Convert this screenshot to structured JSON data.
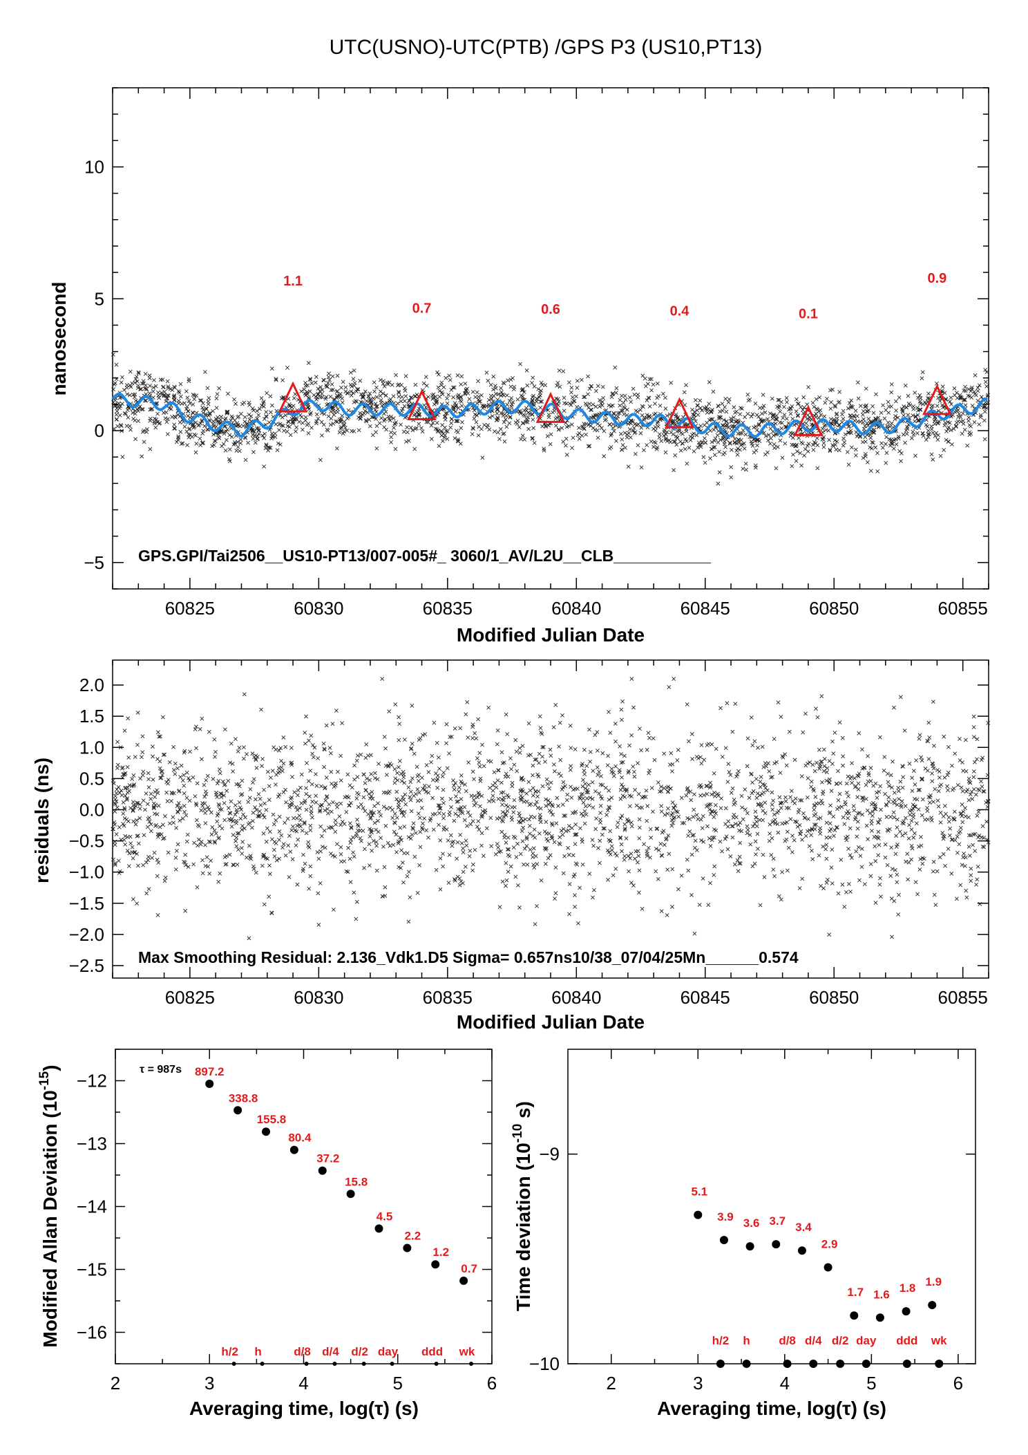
{
  "title": "UTC(USNO)-UTC(PTB)  /GPS  P3  (US10,PT13)",
  "panel_top": {
    "ylabel": "nanosecond",
    "xlabel": "Modified Julian Date",
    "annotation": "GPS.GPI/Tai2506__US10-PT13/007-005#_  3060/1_AV/L2U__CLB___________"
  },
  "panel_mid": {
    "ylabel": "residuals (ns)",
    "xlabel": "Modified Julian Date",
    "annotation": "Max Smoothing Residual: 2.136_Vdk1.D5  Sigma= 0.657ns10/38_07/04/25Mn______0.574"
  },
  "panel_adev": {
    "ylabel": "Modified Allan Deviation (10",
    "ylabel_exp": "-15",
    "ylabel_end": ")",
    "xlabel": "Averaging time, log(τ) (s)",
    "tau_note": "τ = 987s"
  },
  "panel_tdev": {
    "ylabel": "Time deviation (10",
    "ylabel_exp": "-10",
    "ylabel_end": " s)",
    "xlabel": "Averaging time, log(τ) (s)"
  },
  "chart_data": [
    {
      "type": "scatter",
      "name": "offset",
      "xlim": [
        60822,
        60856
      ],
      "ylim": [
        -6,
        13
      ],
      "xticks": [
        60825,
        60830,
        60835,
        60840,
        60845,
        60850,
        60855
      ],
      "yticks": [
        -5,
        0,
        5,
        10
      ],
      "scatter_approx": "dense cloud of ~2500 points spread ±1 ns around the smooth curve",
      "smooth_curve": {
        "x": [
          60822,
          60823,
          60824,
          60825,
          60826,
          60827,
          60828,
          60829,
          60830,
          60831,
          60832,
          60833,
          60834,
          60835,
          60836,
          60837,
          60838,
          60839,
          60840,
          60841,
          60842,
          60843,
          60844,
          60845,
          60846,
          60847,
          60848,
          60849,
          60850,
          60851,
          60852,
          60853,
          60854,
          60855,
          60856
        ],
        "y": [
          1.2,
          1.1,
          1.0,
          0.5,
          0.2,
          0.0,
          0.3,
          0.8,
          1.0,
          0.8,
          0.8,
          0.8,
          0.8,
          0.7,
          0.8,
          0.9,
          0.9,
          0.8,
          0.6,
          0.5,
          0.4,
          0.4,
          0.3,
          0.1,
          0.0,
          0.0,
          0.1,
          0.2,
          0.2,
          0.1,
          0.1,
          0.3,
          0.6,
          0.8,
          1.0
        ],
        "color": "#1e88e5"
      },
      "markers": [
        {
          "x": 60829,
          "y": 1.1,
          "label": "1.1"
        },
        {
          "x": 60834,
          "y": 0.8,
          "label": "0.7"
        },
        {
          "x": 60839,
          "y": 0.7,
          "label": "0.6"
        },
        {
          "x": 60844,
          "y": 0.5,
          "label": "0.4"
        },
        {
          "x": 60849,
          "y": 0.2,
          "label": "0.1"
        },
        {
          "x": 60854,
          "y": 1.0,
          "label": "0.9"
        }
      ],
      "marker_color": "#e31a1c"
    },
    {
      "type": "scatter",
      "name": "residuals",
      "xlim": [
        60822,
        60856
      ],
      "ylim": [
        -2.7,
        2.4
      ],
      "xticks": [
        60825,
        60830,
        60835,
        60840,
        60845,
        60850,
        60855
      ],
      "yticks": [
        -2.5,
        -2.0,
        -1.5,
        -1.0,
        -0.5,
        0.0,
        0.5,
        1.0,
        1.5,
        2.0
      ],
      "yticklabels": [
        "−2.5",
        "−2.0",
        "−1.5",
        "−1.0",
        "−0.5",
        "0.0",
        "0.5",
        "1.0",
        "1.5",
        "2.0"
      ],
      "scatter_approx": "~2500 residual points roughly normally distributed, sigma ≈ 0.66 ns"
    },
    {
      "type": "scatter",
      "name": "modified-allan-deviation",
      "xlim": [
        2,
        6
      ],
      "ylim": [
        -16.5,
        -11.5
      ],
      "xticks": [
        2,
        3,
        4,
        5,
        6
      ],
      "yticks": [
        -16,
        -15,
        -14,
        -13,
        -12
      ],
      "points": [
        {
          "x": 3.0,
          "y": -12.05,
          "label": "897.2"
        },
        {
          "x": 3.3,
          "y": -12.47,
          "label": "338.8"
        },
        {
          "x": 3.6,
          "y": -12.81,
          "label": "155.8"
        },
        {
          "x": 3.9,
          "y": -13.1,
          "label": "80.4"
        },
        {
          "x": 4.2,
          "y": -13.43,
          "label": "37.2"
        },
        {
          "x": 4.5,
          "y": -13.8,
          "label": "15.8"
        },
        {
          "x": 4.8,
          "y": -14.35,
          "label": "4.5"
        },
        {
          "x": 5.1,
          "y": -14.66,
          "label": "2.2"
        },
        {
          "x": 5.4,
          "y": -14.92,
          "label": "1.2"
        },
        {
          "x": 5.7,
          "y": -15.18,
          "label": "0.7"
        }
      ],
      "tau_markers": [
        {
          "x": 3.26,
          "label": "h/2"
        },
        {
          "x": 3.56,
          "label": "h"
        },
        {
          "x": 4.03,
          "label": "d/8"
        },
        {
          "x": 4.33,
          "label": "d/4"
        },
        {
          "x": 4.64,
          "label": "d/2"
        },
        {
          "x": 4.94,
          "label": "day"
        },
        {
          "x": 5.41,
          "label": "ddd"
        },
        {
          "x": 5.78,
          "label": "wk"
        }
      ]
    },
    {
      "type": "scatter",
      "name": "time-deviation",
      "xlim": [
        1.5,
        6.2
      ],
      "ylim": [
        -10,
        -8.5
      ],
      "xticks": [
        2,
        3,
        4,
        5,
        6
      ],
      "yticks": [
        -10,
        -9
      ],
      "points": [
        {
          "x": 3.0,
          "y": -9.29,
          "label": "5.1"
        },
        {
          "x": 3.3,
          "y": -9.41,
          "label": "3.9"
        },
        {
          "x": 3.6,
          "y": -9.44,
          "label": "3.6"
        },
        {
          "x": 3.9,
          "y": -9.43,
          "label": "3.7"
        },
        {
          "x": 4.2,
          "y": -9.46,
          "label": "3.4"
        },
        {
          "x": 4.5,
          "y": -9.54,
          "label": "2.9"
        },
        {
          "x": 4.8,
          "y": -9.77,
          "label": "1.7"
        },
        {
          "x": 5.1,
          "y": -9.78,
          "label": "1.6"
        },
        {
          "x": 5.4,
          "y": -9.75,
          "label": "1.8"
        },
        {
          "x": 5.7,
          "y": -9.72,
          "label": "1.9"
        }
      ],
      "tau_markers": [
        {
          "x": 3.26,
          "label": "h/2"
        },
        {
          "x": 3.56,
          "label": "h"
        },
        {
          "x": 4.03,
          "label": "d/8"
        },
        {
          "x": 4.33,
          "label": "d/4"
        },
        {
          "x": 4.64,
          "label": "d/2"
        },
        {
          "x": 4.94,
          "label": "day"
        },
        {
          "x": 5.41,
          "label": "ddd"
        },
        {
          "x": 5.78,
          "label": "wk"
        }
      ]
    }
  ]
}
